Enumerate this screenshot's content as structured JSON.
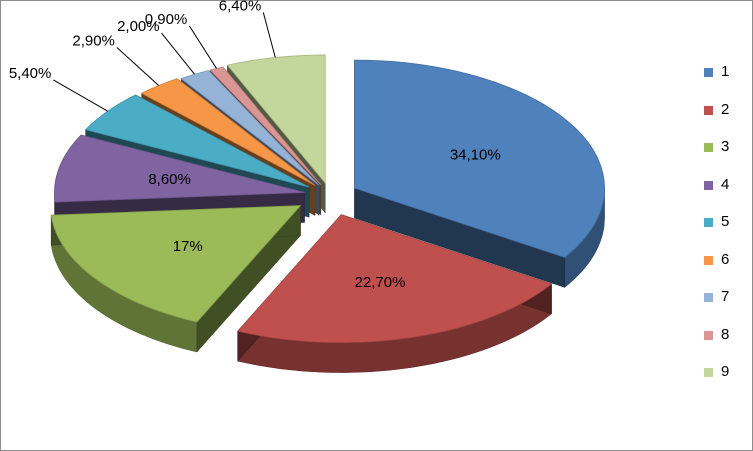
{
  "chart_data": {
    "type": "pie",
    "subtype": "3d-exploded",
    "categories": [
      "1",
      "2",
      "3",
      "4",
      "5",
      "6",
      "7",
      "8",
      "9"
    ],
    "values": [
      34.1,
      22.7,
      17,
      8.6,
      5.4,
      2.9,
      2.0,
      0.9,
      6.4
    ],
    "data_labels": [
      "34,10%",
      "22,70%",
      "17%",
      "8,60%",
      "5,40%",
      "2,90%",
      "2,00%",
      "0,90%",
      "6,40%"
    ],
    "colors": [
      "#4F81BD",
      "#C0504D",
      "#9BBB59",
      "#8064A2",
      "#4BACC6",
      "#F79646",
      "#95B3D7",
      "#D99694",
      "#C3D69B"
    ],
    "legend": {
      "placement": "right",
      "entries": [
        "1",
        "2",
        "3",
        "4",
        "5",
        "6",
        "7",
        "8",
        "9"
      ]
    },
    "title": ""
  }
}
